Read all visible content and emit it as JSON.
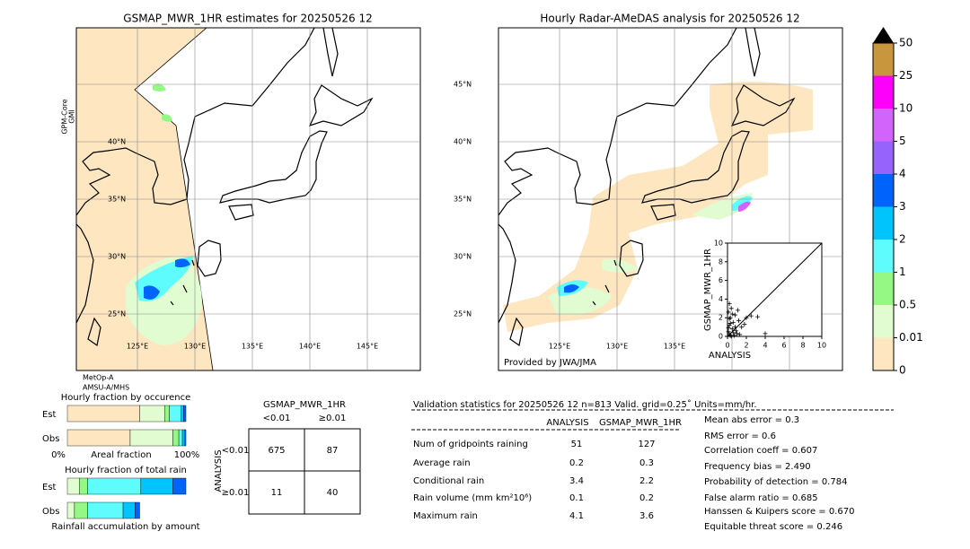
{
  "left_map": {
    "title": "GSMAP_MWR_1HR estimates for 20250526 12",
    "sensor_labels": [
      "GPM-Core",
      "GMI"
    ],
    "bottom_labels": [
      "MetOp-A",
      "AMSU-A/MHS"
    ],
    "lat_labels": [
      "40°N",
      "35°N",
      "30°N",
      "25°N"
    ],
    "lon_labels": [
      "125°E",
      "130°E",
      "135°E",
      "140°E",
      "145°E"
    ]
  },
  "right_map": {
    "title": "Hourly Radar-AMeDAS analysis for 20250526 12",
    "lat_labels": [
      "45°N",
      "40°N",
      "35°N",
      "30°N",
      "25°N"
    ],
    "lon_labels": [
      "125°E",
      "130°E",
      "135°E"
    ],
    "credit": "Provided by JWA/JMA"
  },
  "colorbar": {
    "ticks": [
      0,
      0.01,
      0.5,
      1,
      2,
      3,
      4,
      5,
      10,
      25,
      50
    ],
    "colors": [
      "#fde6c0",
      "#e2fcd2",
      "#96f884",
      "#5efcfc",
      "#00c4fc",
      "#0064fc",
      "#9664fc",
      "#d264fc",
      "#fc00fc",
      "#c8963c"
    ],
    "extend_color": "#000000"
  },
  "scatter": {
    "type": "scatter",
    "x_label": "ANALYSIS",
    "y_label": "GSMAP_MWR_1HR",
    "xlim": [
      0,
      10
    ],
    "ylim": [
      0,
      10
    ],
    "xticks": [
      0,
      2,
      4,
      6,
      8,
      10
    ],
    "yticks": [
      0,
      2,
      4,
      6,
      8,
      10
    ],
    "x": [
      0.1,
      0.2,
      0.3,
      0.5,
      0.6,
      0.8,
      1.0,
      1.2,
      0.4,
      0.1,
      0.2,
      0.7,
      1.5,
      2.0,
      0.3,
      0.9,
      1.1,
      0.2,
      0.6,
      3.2,
      2.5,
      1.8,
      0.1,
      0.4,
      0.5,
      0.8,
      1.3,
      4.0,
      0.2,
      0.3
    ],
    "y": [
      0.5,
      1.2,
      2.0,
      0.8,
      1.5,
      2.3,
      0.3,
      1.7,
      3.0,
      2.6,
      0.2,
      0.1,
      1.0,
      2.0,
      1.4,
      0.6,
      2.8,
      1.9,
      0.4,
      2.1,
      2.2,
      1.3,
      0.9,
      0.0,
      2.4,
      1.0,
      0.2,
      0.3,
      3.5,
      0.1
    ]
  },
  "fraction_occurrence": {
    "title": "Hourly fraction by occurence",
    "rows": [
      "Est",
      "Obs"
    ],
    "axis_labels": [
      "0%",
      "Areal fraction",
      "100%"
    ],
    "colors": [
      "#fde6c0",
      "#e2fcd2",
      "#96f884",
      "#5efcfc",
      "#00c4fc",
      "#0064fc"
    ],
    "est": [
      0.61,
      0.21,
      0.04,
      0.1,
      0.02,
      0.02
    ],
    "obs": [
      0.53,
      0.36,
      0.05,
      0.03,
      0.02,
      0.01
    ]
  },
  "fraction_total": {
    "title": "Hourly fraction of total rain",
    "rows": [
      "Est",
      "Obs"
    ],
    "footer": "Rainfall accumulation by amount",
    "colors": [
      "#e2fcd2",
      "#96f884",
      "#5efcfc",
      "#00c4fc",
      "#0064fc"
    ],
    "est": [
      0.1,
      0.07,
      0.45,
      0.27,
      0.11
    ],
    "obs": [
      0.06,
      0.11,
      0.3,
      0.1,
      0.04
    ]
  },
  "contingency": {
    "title": "GSMAP_MWR_1HR",
    "col_labels": [
      "<0.01",
      "≥0.01"
    ],
    "row_title": "ANALYSIS",
    "row_labels": [
      "<0.01",
      "≥0.01"
    ],
    "cells": [
      [
        "675",
        "87"
      ],
      [
        "11",
        "40"
      ]
    ]
  },
  "validation": {
    "header": "Validation statistics for 20250526 12  n=813 Valid. grid=0.25˚ Units=mm/hr.",
    "columns": [
      "ANALYSIS",
      "GSMAP_MWR_1HR"
    ],
    "rows": [
      [
        "Num of gridpoints raining",
        "51",
        "127"
      ],
      [
        "Average rain",
        "0.2",
        "0.3"
      ],
      [
        "Conditional rain",
        "3.4",
        "2.2"
      ],
      [
        "Rain volume (mm km²10⁶)",
        "0.1",
        "0.2"
      ],
      [
        "Maximum rain",
        "4.1",
        "3.6"
      ]
    ],
    "scores": [
      "Mean abs error =    0.3",
      "RMS error =    0.6",
      "Correlation coeff =  0.607",
      "Frequency bias =  2.490",
      "Probability of detection =  0.784",
      "False alarm ratio =  0.685",
      "Hanssen & Kuipers score =  0.670",
      "Equitable threat score =  0.246"
    ]
  }
}
